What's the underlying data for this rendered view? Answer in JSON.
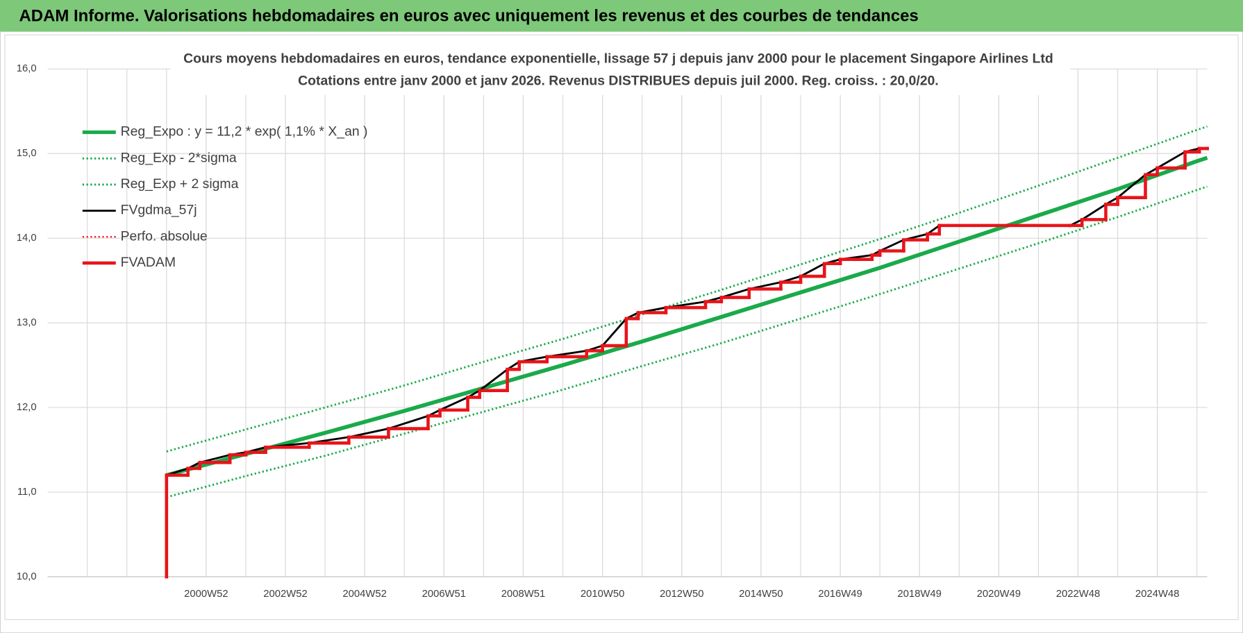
{
  "header": {
    "title": "ADAM Informe. Valorisations hebdomadaires en euros avec uniquement les revenus et des courbes de tendances"
  },
  "chart_data": {
    "type": "line",
    "title": "Cours moyens hebdomadaires en euros, tendance exponentielle, lissage 57 j depuis janv 2000  pour le placement Singapore Airlines Ltd",
    "subtitle": "Cotations entre janv 2000 et janv 2026. Revenus DISTRIBUES depuis juil 2000. Reg. croiss. : 20,0/20.",
    "xlim": [
      1997,
      2026.26
    ],
    "xticks": [
      {
        "value": 2001,
        "label": "2000W52"
      },
      {
        "value": 2003,
        "label": "2002W52"
      },
      {
        "value": 2005,
        "label": "2004W52"
      },
      {
        "value": 2007,
        "label": "2006W51"
      },
      {
        "value": 2009,
        "label": "2008W51"
      },
      {
        "value": 2011,
        "label": "2010W50"
      },
      {
        "value": 2013,
        "label": "2012W50"
      },
      {
        "value": 2015,
        "label": "2014W50"
      },
      {
        "value": 2017,
        "label": "2016W49"
      },
      {
        "value": 2019,
        "label": "2018W49"
      },
      {
        "value": 2021,
        "label": "2020W49"
      },
      {
        "value": 2023,
        "label": "2022W48"
      },
      {
        "value": 2025,
        "label": "2024W48"
      }
    ],
    "ylim": [
      10,
      16
    ],
    "yticks": [
      {
        "value": 10,
        "label": "10,0"
      },
      {
        "value": 11,
        "label": "11,0"
      },
      {
        "value": 12,
        "label": "12,0"
      },
      {
        "value": 13,
        "label": "13,0"
      },
      {
        "value": 14,
        "label": "14,0"
      },
      {
        "value": 15,
        "label": "15,0"
      },
      {
        "value": 16,
        "label": "16,0"
      }
    ],
    "grid": true,
    "x": [
      2000,
      2002,
      2004,
      2006,
      2008,
      2010,
      2012,
      2014,
      2016,
      2018,
      2020,
      2022,
      2024,
      2026,
      2026.26
    ],
    "series": [
      {
        "name": "Reg_Expo : y = 11,2 * exp( 1,1% *  X_an )",
        "color": "#1aaa4a",
        "width": 5,
        "dash": "solid",
        "values": [
          11.2,
          11.45,
          11.7,
          11.96,
          12.23,
          12.5,
          12.78,
          13.07,
          13.36,
          13.65,
          13.96,
          14.27,
          14.58,
          14.91,
          14.95
        ]
      },
      {
        "name": "Reg_Exp - 2*sigma",
        "color": "#1aaa4a",
        "width": 2.5,
        "dash": "dotted",
        "values": [
          10.94,
          11.19,
          11.43,
          11.69,
          11.95,
          12.21,
          12.49,
          12.76,
          13.05,
          13.34,
          13.64,
          13.94,
          14.25,
          14.57,
          14.61
        ]
      },
      {
        "name": "Reg_Exp + 2 sigma",
        "color": "#1aaa4a",
        "width": 2.5,
        "dash": "dotted",
        "values": [
          11.48,
          11.74,
          12.0,
          12.26,
          12.54,
          12.81,
          13.1,
          13.39,
          13.69,
          13.99,
          14.3,
          14.62,
          14.95,
          15.28,
          15.32
        ]
      },
      {
        "name": "FVgdma_57j",
        "color": "#000000",
        "width": 2.5,
        "dash": "solid",
        "x": [
          2000.0,
          2000.54,
          2000.84,
          2001.6,
          2002.0,
          2002.5,
          2003.6,
          2004.6,
          2005.6,
          2006.6,
          2006.9,
          2007.6,
          2007.9,
          2008.6,
          2008.9,
          2009.6,
          2010.6,
          2011.0,
          2011.6,
          2011.9,
          2012.6,
          2013.6,
          2014.0,
          2014.7,
          2015.5,
          2016.0,
          2016.6,
          2017.0,
          2017.8,
          2018.0,
          2018.6,
          2019.2,
          2019.5,
          2022.8,
          2023.1,
          2023.7,
          2024.0,
          2024.7,
          2025.0,
          2025.7,
          2026.06,
          2026.26
        ],
        "values": [
          11.2,
          11.28,
          11.35,
          11.44,
          11.47,
          11.53,
          11.58,
          11.65,
          11.75,
          11.9,
          11.97,
          12.12,
          12.2,
          12.45,
          12.54,
          12.6,
          12.67,
          12.73,
          13.05,
          13.12,
          13.18,
          13.25,
          13.3,
          13.4,
          13.48,
          13.55,
          13.7,
          13.75,
          13.8,
          13.85,
          13.98,
          14.05,
          14.15,
          14.15,
          14.22,
          14.4,
          14.48,
          14.75,
          14.83,
          15.02,
          15.06,
          15.06
        ]
      },
      {
        "name": "Perfo. absolue",
        "color": "#e8141a",
        "width": 2,
        "dash": "dotted",
        "x": [],
        "values": []
      },
      {
        "name": "FVADAM",
        "color": "#e8141a",
        "width": 4,
        "dash": "solid",
        "step": true,
        "x": [
          2000.0,
          2000.0,
          2000.54,
          2000.84,
          2001.6,
          2002.0,
          2002.5,
          2003.6,
          2004.6,
          2005.6,
          2006.6,
          2006.9,
          2007.6,
          2007.9,
          2008.6,
          2008.9,
          2009.6,
          2010.6,
          2011.0,
          2011.6,
          2011.9,
          2012.6,
          2013.6,
          2014.0,
          2014.7,
          2015.5,
          2016.0,
          2016.6,
          2017.0,
          2017.8,
          2018.0,
          2018.6,
          2019.2,
          2019.5,
          2022.8,
          2023.1,
          2023.7,
          2024.0,
          2024.7,
          2025.0,
          2025.7,
          2026.06,
          2026.26
        ],
        "values": [
          10.0,
          11.2,
          11.28,
          11.35,
          11.44,
          11.47,
          11.53,
          11.58,
          11.65,
          11.75,
          11.9,
          11.97,
          12.12,
          12.2,
          12.45,
          12.54,
          12.6,
          12.67,
          12.73,
          13.05,
          13.12,
          13.18,
          13.25,
          13.3,
          13.4,
          13.48,
          13.55,
          13.7,
          13.75,
          13.8,
          13.85,
          13.98,
          14.05,
          14.15,
          14.15,
          14.22,
          14.4,
          14.48,
          14.75,
          14.83,
          15.02,
          15.06,
          15.06
        ]
      }
    ]
  }
}
